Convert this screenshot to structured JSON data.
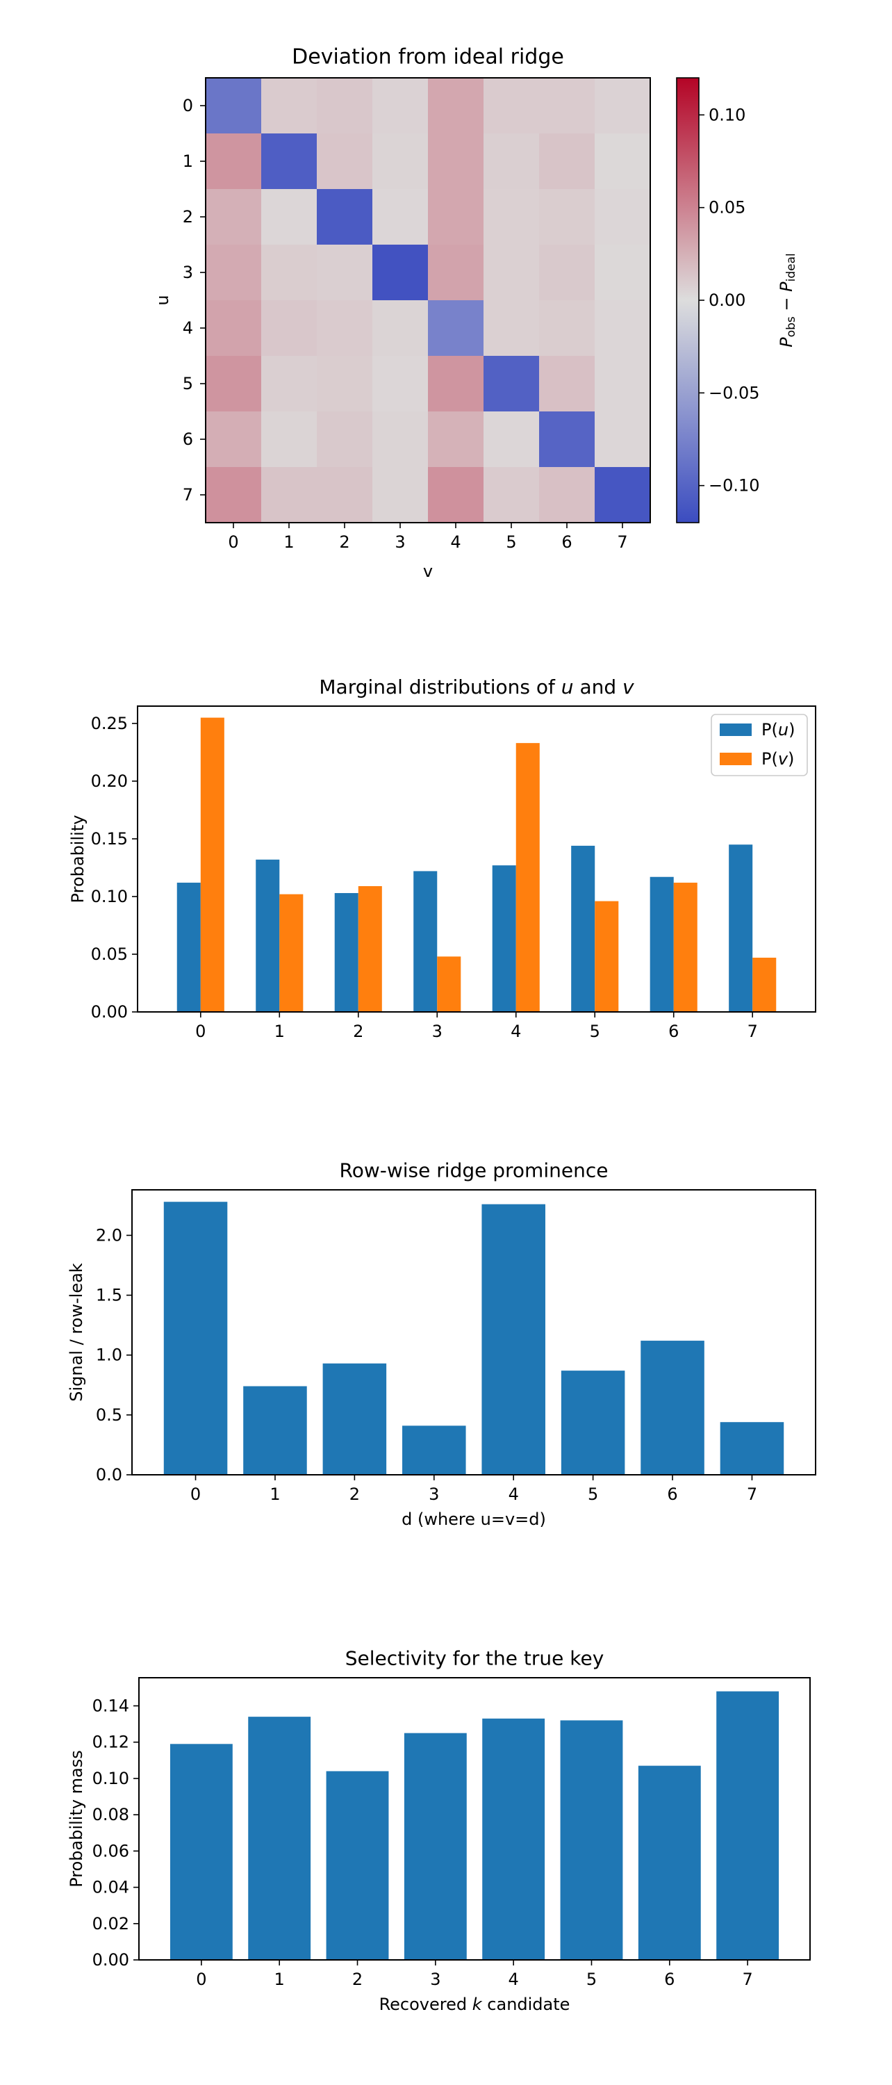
{
  "chart_data": [
    {
      "type": "heatmap",
      "title": "Deviation from ideal ridge",
      "xlabel": "v",
      "ylabel": "u",
      "x_ticks": [
        "0",
        "1",
        "2",
        "3",
        "4",
        "5",
        "6",
        "7"
      ],
      "y_ticks": [
        "0",
        "1",
        "2",
        "3",
        "4",
        "5",
        "6",
        "7"
      ],
      "colorbar": {
        "label_parts": [
          "P",
          "obs",
          " − ",
          "P",
          "ideal"
        ],
        "range": [
          -0.12,
          0.12
        ],
        "ticks": [
          0.1,
          0.05,
          0.0,
          -0.05,
          -0.1
        ],
        "tick_labels": [
          "0.10",
          "0.05",
          "0.00",
          "−0.05",
          "−0.10"
        ],
        "colormap": "coolwarm",
        "cold": "#3b4cc0",
        "mid": "#dddddd",
        "hot": "#b40426"
      },
      "values": [
        [
          -0.085,
          0.01,
          0.012,
          0.006,
          0.03,
          0.01,
          0.01,
          0.006
        ],
        [
          0.04,
          -0.105,
          0.013,
          0.005,
          0.03,
          0.008,
          0.014,
          0.003
        ],
        [
          0.025,
          0.004,
          -0.108,
          0.004,
          0.03,
          0.007,
          0.009,
          0.004
        ],
        [
          0.028,
          0.009,
          0.008,
          -0.115,
          0.032,
          0.007,
          0.011,
          0.003
        ],
        [
          0.032,
          0.012,
          0.01,
          0.005,
          -0.075,
          0.007,
          0.009,
          0.004
        ],
        [
          0.04,
          0.008,
          0.009,
          0.004,
          0.04,
          -0.103,
          0.016,
          0.004
        ],
        [
          0.026,
          0.005,
          0.011,
          0.005,
          0.024,
          0.004,
          -0.1,
          0.004
        ],
        [
          0.042,
          0.014,
          0.014,
          0.005,
          0.042,
          0.01,
          0.016,
          -0.112
        ]
      ]
    },
    {
      "type": "bar",
      "title_parts": [
        "Marginal distributions of ",
        "u",
        " and ",
        "v"
      ],
      "xlabel": "",
      "ylabel": "Probability",
      "categories": [
        "0",
        "1",
        "2",
        "3",
        "4",
        "5",
        "6",
        "7"
      ],
      "ylim": [
        0,
        0.265
      ],
      "yticks": [
        0.0,
        0.05,
        0.1,
        0.15,
        0.2,
        0.25
      ],
      "ytick_labels": [
        "0.00",
        "0.05",
        "0.10",
        "0.15",
        "0.20",
        "0.25"
      ],
      "legend_position": "top-right",
      "series": [
        {
          "name_parts": [
            "P(",
            "u",
            ")"
          ],
          "color": "#1f77b4",
          "values": [
            0.112,
            0.132,
            0.103,
            0.122,
            0.127,
            0.144,
            0.117,
            0.145
          ]
        },
        {
          "name_parts": [
            "P(",
            "v",
            ")"
          ],
          "color": "#ff7f0e",
          "values": [
            0.255,
            0.102,
            0.109,
            0.048,
            0.233,
            0.096,
            0.112,
            0.047
          ]
        }
      ]
    },
    {
      "type": "bar",
      "title": "Row-wise ridge prominence",
      "xlabel": "d (where u=v=d)",
      "ylabel": "Signal / row-leak",
      "categories": [
        "0",
        "1",
        "2",
        "3",
        "4",
        "5",
        "6",
        "7"
      ],
      "ylim": [
        0,
        2.38
      ],
      "yticks": [
        0.0,
        0.5,
        1.0,
        1.5,
        2.0
      ],
      "ytick_labels": [
        "0.0",
        "0.5",
        "1.0",
        "1.5",
        "2.0"
      ],
      "color": "#1f77b4",
      "values": [
        2.28,
        0.74,
        0.93,
        0.41,
        2.26,
        0.87,
        1.12,
        0.44
      ]
    },
    {
      "type": "bar",
      "title": "Selectivity for the true key",
      "xlabel_parts": [
        "Recovered ",
        "k",
        " candidate"
      ],
      "ylabel": "Probability mass",
      "categories": [
        "0",
        "1",
        "2",
        "3",
        "4",
        "5",
        "6",
        "7"
      ],
      "ylim": [
        0,
        0.1555
      ],
      "yticks": [
        0.0,
        0.02,
        0.04,
        0.06,
        0.08,
        0.1,
        0.12,
        0.14
      ],
      "ytick_labels": [
        "0.00",
        "0.02",
        "0.04",
        "0.06",
        "0.08",
        "0.10",
        "0.12",
        "0.14"
      ],
      "color": "#1f77b4",
      "values": [
        0.119,
        0.134,
        0.104,
        0.125,
        0.133,
        0.132,
        0.107,
        0.148
      ]
    }
  ]
}
